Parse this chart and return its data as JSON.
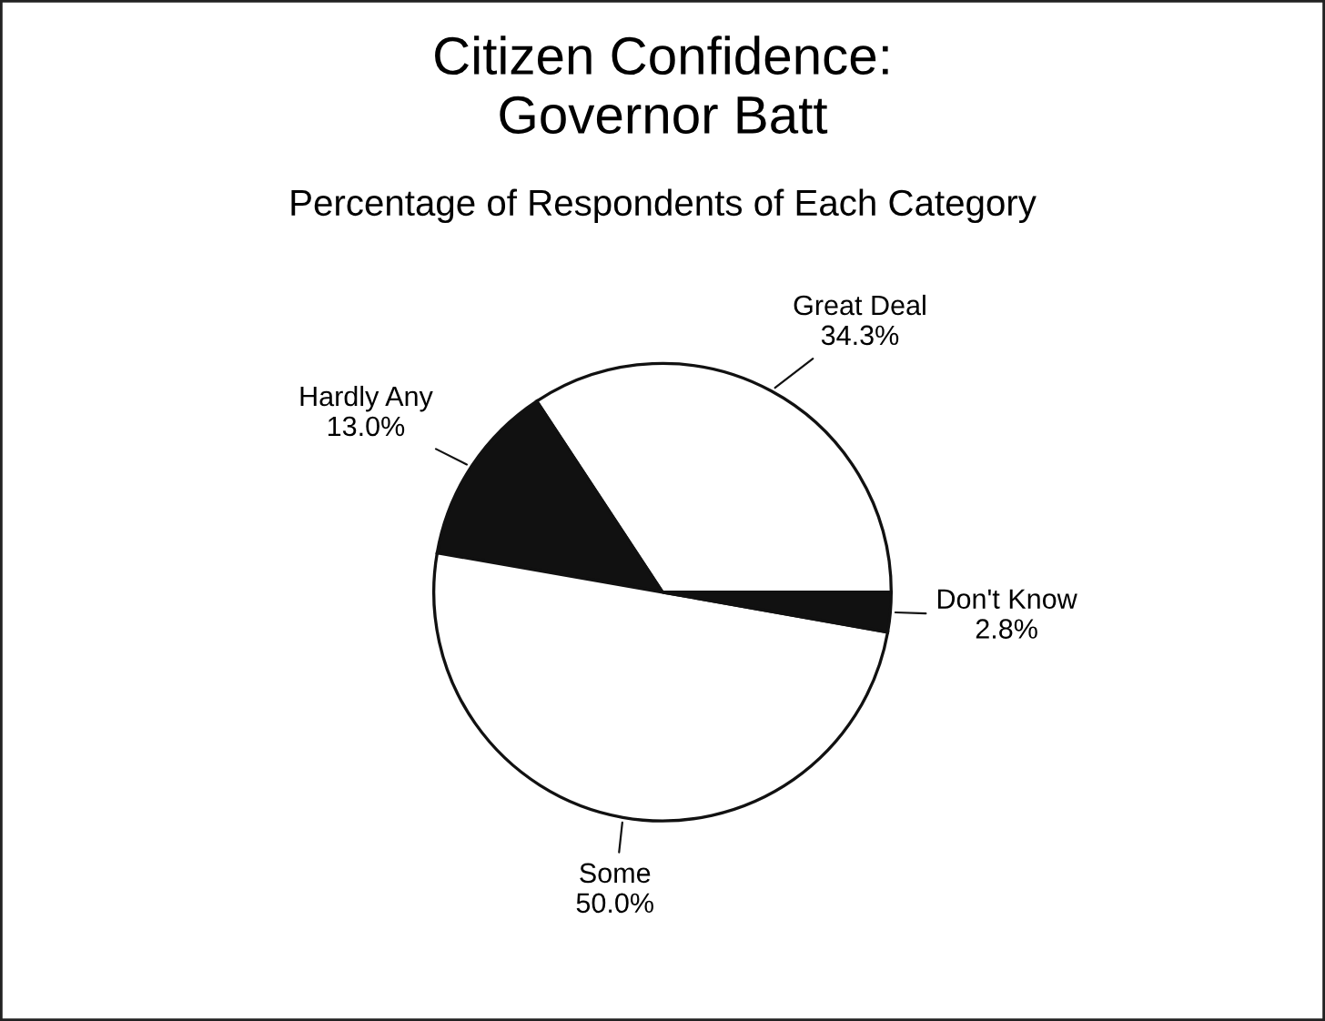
{
  "chart_data": {
    "type": "pie",
    "title": "Citizen Confidence:\nGovernor Batt",
    "subtitle": "Percentage of Respondents of Each Category",
    "categories": [
      "Great Deal",
      "Hardly Any",
      "Some",
      "Don't Know"
    ],
    "values": [
      34.3,
      13.0,
      50.0,
      2.8
    ],
    "value_labels": [
      "34.3%",
      "13.0%",
      "50.0%",
      "2.8%"
    ],
    "colors": [
      "#ffffff",
      "#111111",
      "#ffffff",
      "#111111"
    ],
    "legend": false
  }
}
